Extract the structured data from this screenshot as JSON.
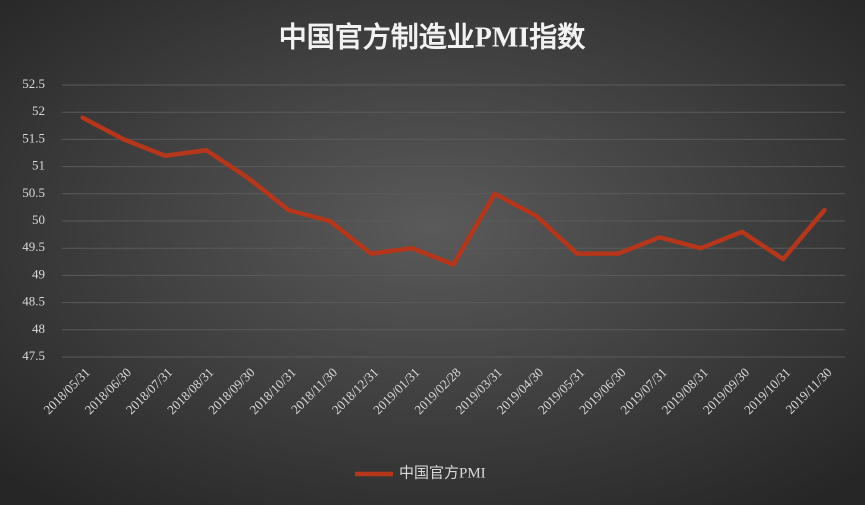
{
  "chart_data": {
    "type": "line",
    "title": "中国官方制造业PMI指数",
    "categories": [
      "2018/05/31",
      "2018/06/30",
      "2018/07/31",
      "2018/08/31",
      "2018/09/30",
      "2018/10/31",
      "2018/11/30",
      "2018/12/31",
      "2019/01/31",
      "2019/02/28",
      "2019/03/31",
      "2019/04/30",
      "2019/05/31",
      "2019/06/30",
      "2019/07/31",
      "2019/08/31",
      "2019/09/30",
      "2019/10/31",
      "2019/11/30"
    ],
    "series": [
      {
        "name": "中国官方PMI",
        "color": "#b5361a",
        "values": [
          51.9,
          51.5,
          51.2,
          51.3,
          50.8,
          50.2,
          50.0,
          49.4,
          49.5,
          49.2,
          50.5,
          50.1,
          49.4,
          49.4,
          49.7,
          49.5,
          49.8,
          49.3,
          50.2
        ]
      }
    ],
    "ylim": [
      47.5,
      52.5
    ],
    "yticks": [
      47.5,
      48,
      48.5,
      49,
      49.5,
      50,
      50.5,
      51,
      51.5,
      52,
      52.5
    ],
    "grid": true,
    "legend": "bottom"
  }
}
